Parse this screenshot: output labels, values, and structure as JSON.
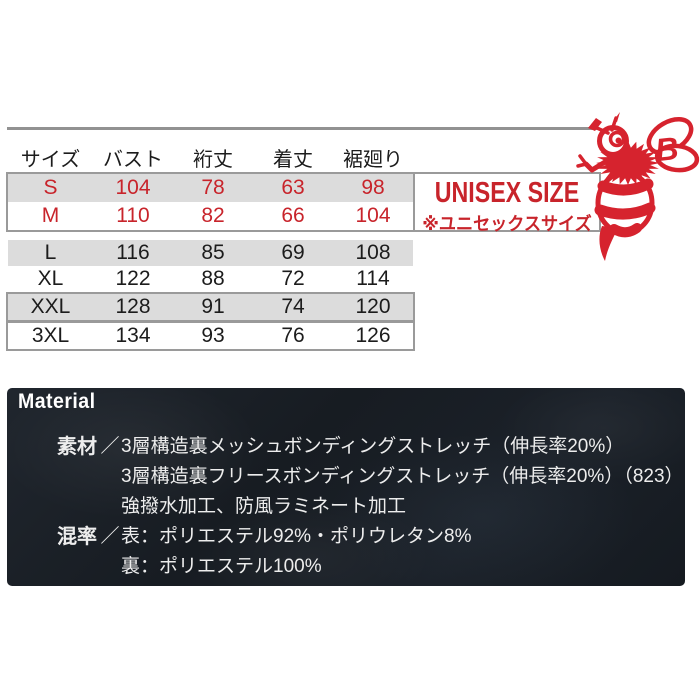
{
  "colors": {
    "accent_red": "#c8242b",
    "bee_red": "#d6232e",
    "row_shade": "#dcdcdc",
    "border_gray": "#9a9a9a",
    "line_gray": "#929292",
    "material_bg": "#1a2026",
    "material_text": "#ededed"
  },
  "icons": {
    "mascot": "bee-mascot-icon"
  },
  "size_table": {
    "headers": [
      "サイズ",
      "バスト",
      "裄丈",
      "着丈",
      "裾廻り"
    ],
    "rows": [
      {
        "size": "S",
        "values": [
          "104",
          "78",
          "63",
          "98"
        ],
        "highlight": true,
        "shaded": true
      },
      {
        "size": "M",
        "values": [
          "110",
          "82",
          "66",
          "104"
        ],
        "highlight": true,
        "shaded": false
      },
      {
        "size": "L",
        "values": [
          "116",
          "85",
          "69",
          "108"
        ],
        "highlight": false,
        "shaded": true
      },
      {
        "size": "XL",
        "values": [
          "122",
          "88",
          "72",
          "114"
        ],
        "highlight": false,
        "shaded": false
      },
      {
        "size": "XXL",
        "values": [
          "128",
          "91",
          "74",
          "120"
        ],
        "highlight": false,
        "shaded": true
      },
      {
        "size": "3XL",
        "values": [
          "134",
          "93",
          "76",
          "126"
        ],
        "highlight": false,
        "shaded": false
      }
    ]
  },
  "unisex": {
    "title": "UNISEX SIZE",
    "subtitle": "※ユニセックスサイズ"
  },
  "bee": {
    "wing_letter": "B"
  },
  "material": {
    "title": "Material",
    "rows": [
      {
        "label": "素材",
        "sep": "／",
        "text": "3層構造裏メッシュボンディングストレッチ（伸長率20%）"
      },
      {
        "label": "",
        "sep": "",
        "text": "3層構造裏フリースボンディングストレッチ（伸長率20%）（823）"
      },
      {
        "label": "",
        "sep": "",
        "text": "強撥水加工、防風ラミネート加工"
      },
      {
        "label": "混率",
        "sep": "／",
        "text": "表：ポリエステル92%・ポリウレタン8%"
      },
      {
        "label": "",
        "sep": "",
        "text": "裏：ポリエステル100%"
      }
    ]
  }
}
